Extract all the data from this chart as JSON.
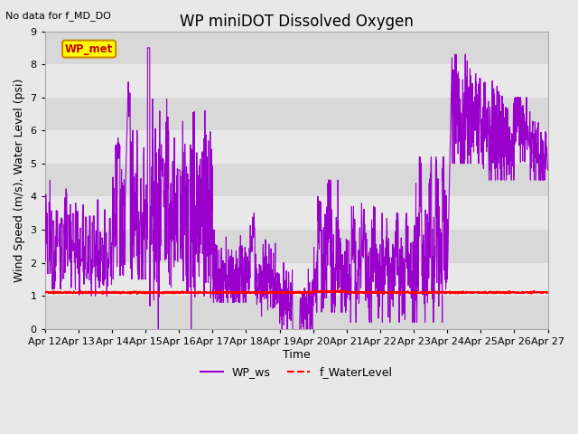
{
  "title": "WP miniDOT Dissolved Oxygen",
  "subtitle": "No data for f_MD_DO",
  "ylabel": "Wind Speed (m/s), Water Level (psi)",
  "xlabel": "Time",
  "ylim": [
    0.0,
    9.0
  ],
  "yticks": [
    0.0,
    1.0,
    2.0,
    3.0,
    4.0,
    5.0,
    6.0,
    7.0,
    8.0,
    9.0
  ],
  "xtick_labels": [
    "Apr 12",
    "Apr 13",
    "Apr 14",
    "Apr 15",
    "Apr 16",
    "Apr 17",
    "Apr 18",
    "Apr 19",
    "Apr 20",
    "Apr 21",
    "Apr 22",
    "Apr 23",
    "Apr 24",
    "Apr 25",
    "Apr 26",
    "Apr 27"
  ],
  "legend_entries": [
    "WP_ws",
    "f_WaterLevel"
  ],
  "legend_colors": [
    "#9900cc",
    "#ff0000"
  ],
  "wp_met_box_facecolor": "#ffff00",
  "wp_met_text_color": "#cc0000",
  "wp_met_box_edgecolor": "#cc8800",
  "background_color": "#e8e8e8",
  "band_colors": [
    "#d8d8d8",
    "#e8e8e8"
  ],
  "wp_ws_color": "#9900cc",
  "f_waterlevel_color": "#ff0000",
  "title_fontsize": 12,
  "axis_label_fontsize": 9,
  "tick_fontsize": 8,
  "legend_fontsize": 9
}
